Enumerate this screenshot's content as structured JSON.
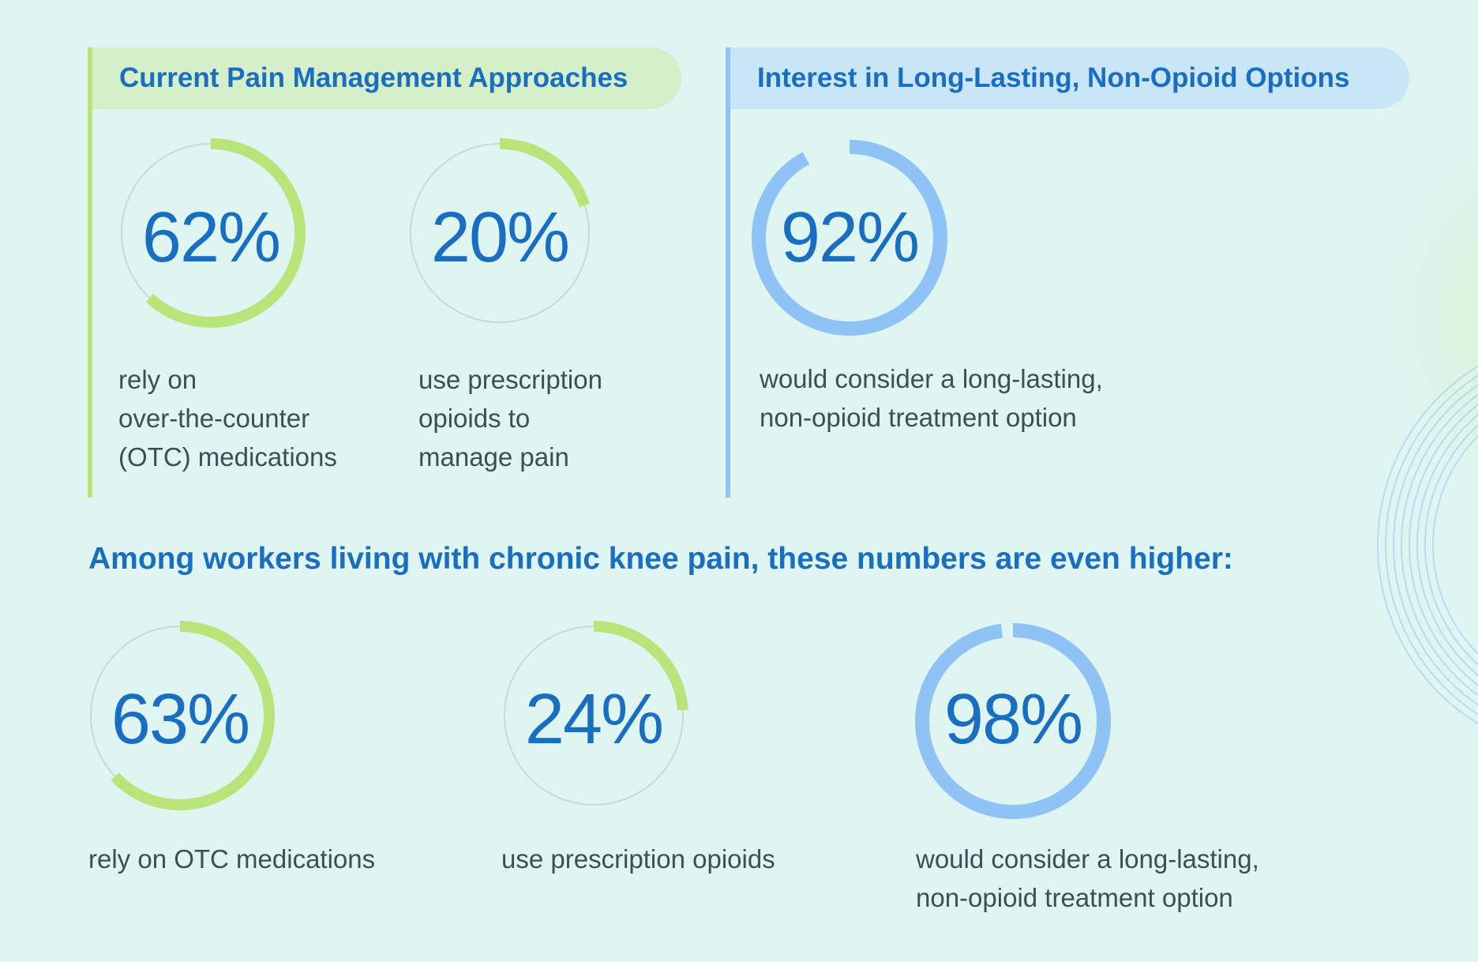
{
  "colors": {
    "green": "#b7e57a",
    "blue": "#8fc2f5",
    "track": "#cfd6d8",
    "heading_blue": "#1a6ec2",
    "caption_gray": "#3f4d55"
  },
  "current": {
    "heading": "Current Pain Management Approaches",
    "stats": [
      {
        "value": "62%",
        "pct": 62,
        "caption_lines": [
          "rely on",
          "over-the-counter",
          "(OTC) medications"
        ]
      },
      {
        "value": "20%",
        "pct": 20,
        "caption_lines": [
          "use prescription",
          "opioids to",
          "manage pain"
        ]
      }
    ]
  },
  "interest": {
    "heading": "Interest in Long-Lasting, Non-Opioid Options",
    "stats": [
      {
        "value": "92%",
        "pct": 92,
        "caption_lines": [
          "would consider a long-lasting,",
          "non-opioid treatment option"
        ]
      }
    ]
  },
  "knee": {
    "heading": "Among workers living with chronic knee pain, these numbers are even higher:",
    "stats": [
      {
        "value": "63%",
        "pct": 63,
        "caption_lines": [
          "rely on OTC medications"
        ]
      },
      {
        "value": "24%",
        "pct": 24,
        "caption_lines": [
          "use prescription opioids"
        ]
      },
      {
        "value": "98%",
        "pct": 98,
        "caption_lines": [
          "would consider a long-lasting,",
          "non-opioid treatment option"
        ]
      }
    ]
  }
}
